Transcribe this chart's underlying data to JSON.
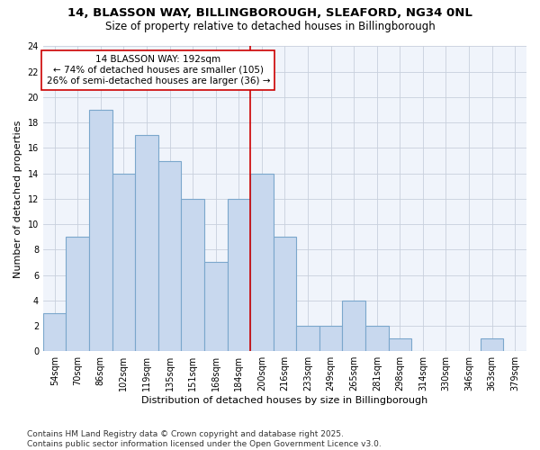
{
  "title1": "14, BLASSON WAY, BILLINGBOROUGH, SLEAFORD, NG34 0NL",
  "title2": "Size of property relative to detached houses in Billingborough",
  "xlabel": "Distribution of detached houses by size in Billingborough",
  "ylabel": "Number of detached properties",
  "categories": [
    "54sqm",
    "70sqm",
    "86sqm",
    "102sqm",
    "119sqm",
    "135sqm",
    "151sqm",
    "168sqm",
    "184sqm",
    "200sqm",
    "216sqm",
    "233sqm",
    "249sqm",
    "265sqm",
    "281sqm",
    "298sqm",
    "314sqm",
    "330sqm",
    "346sqm",
    "363sqm",
    "379sqm"
  ],
  "values": [
    3,
    9,
    19,
    14,
    17,
    15,
    12,
    7,
    12,
    14,
    9,
    2,
    2,
    4,
    2,
    1,
    0,
    0,
    0,
    1,
    0
  ],
  "bar_color": "#c8d8ee",
  "bar_edge_color": "#7ba7cc",
  "vline_color": "#cc0000",
  "vline_x_index": 8.5,
  "annotation_line1": "14 BLASSON WAY: 192sqm",
  "annotation_line2": "← 74% of detached houses are smaller (105)",
  "annotation_line3": "26% of semi-detached houses are larger (36) →",
  "annotation_box_color": "#ffffff",
  "annotation_box_edge_color": "#cc0000",
  "ylim": [
    0,
    24
  ],
  "yticks": [
    0,
    2,
    4,
    6,
    8,
    10,
    12,
    14,
    16,
    18,
    20,
    22,
    24
  ],
  "footnote": "Contains HM Land Registry data © Crown copyright and database right 2025.\nContains public sector information licensed under the Open Government Licence v3.0.",
  "bg_color": "#ffffff",
  "plot_bg_color": "#f0f4fb",
  "grid_color": "#c8d0dc",
  "title1_fontsize": 9.5,
  "title2_fontsize": 8.5,
  "axis_label_fontsize": 8,
  "tick_fontsize": 7,
  "annotation_fontsize": 7.5,
  "footnote_fontsize": 6.5
}
